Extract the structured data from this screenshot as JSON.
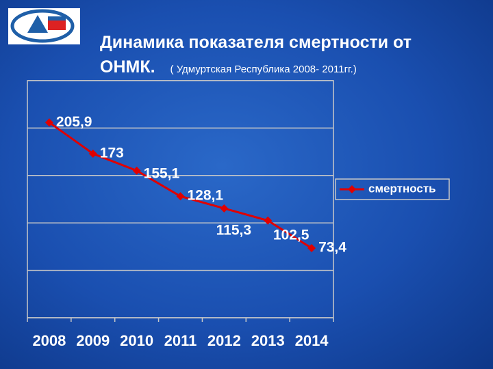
{
  "chart_data": {
    "type": "line",
    "title": "Динамика показателя смертности от ОНМК.",
    "subtitle": "( Удмуртская Республика 2008- 2011гг.)",
    "categories": [
      "2008",
      "2009",
      "2010",
      "2011",
      "2012",
      "2013",
      "2014"
    ],
    "series": [
      {
        "name": "смертность",
        "color": "#e00000",
        "values": [
          205.9,
          173,
          155.1,
          128.1,
          115.3,
          102.5,
          73.4
        ],
        "value_labels": [
          "205,9",
          "173",
          "155,1",
          "128,1",
          "115,3",
          "102,5",
          "73,4"
        ]
      }
    ],
    "ylim": [
      0,
      250
    ],
    "yticks": [
      0,
      50,
      100,
      150,
      200,
      250
    ],
    "grid": true,
    "legend": "right"
  }
}
